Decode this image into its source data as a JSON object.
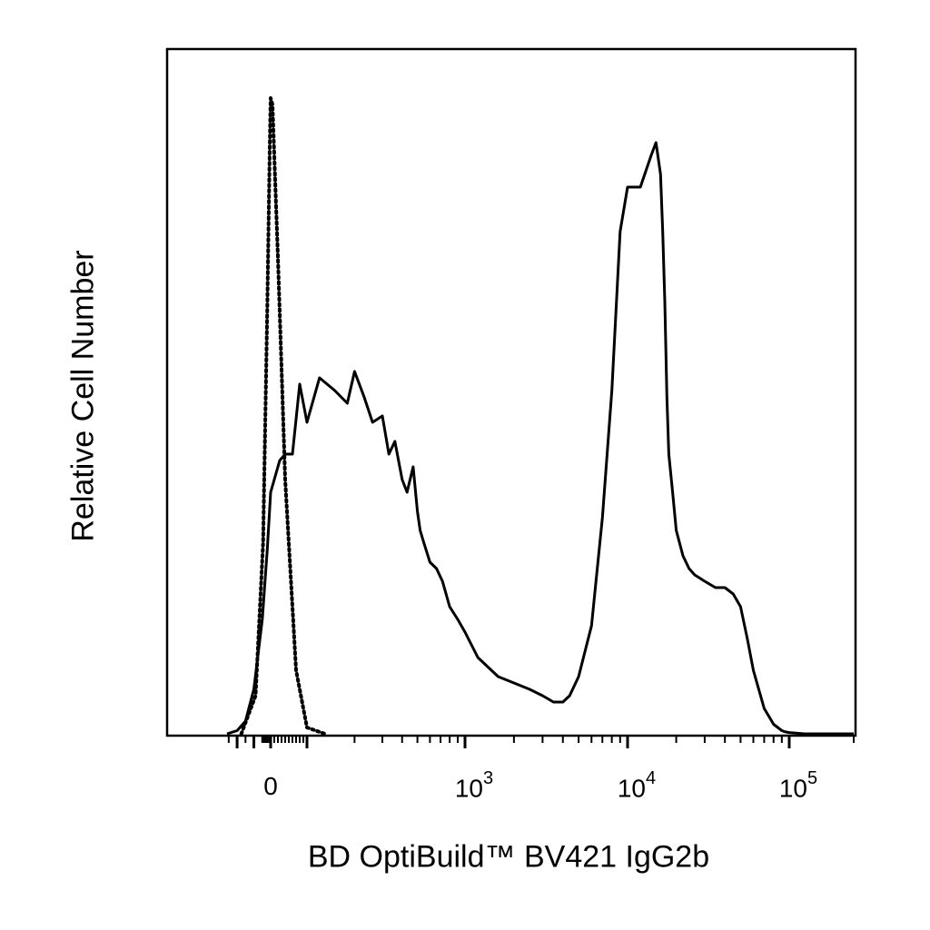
{
  "chart_data": {
    "type": "area",
    "xlabel": "BD OptiBuild™ BV421 IgG2b",
    "ylabel": "Relative Cell Number",
    "x_scale": "biexponential",
    "xlim": [
      -250,
      150000
    ],
    "ylim": [
      0,
      100
    ],
    "grid": false,
    "legend": "none",
    "tick_labels": [
      {
        "base": "0",
        "exp": "",
        "value": 0
      },
      {
        "base": "10",
        "exp": "3",
        "value": 1000
      },
      {
        "base": "10",
        "exp": "4",
        "value": 10000
      },
      {
        "base": "10",
        "exp": "5",
        "value": 100000
      }
    ],
    "series": [
      {
        "style": "dotted",
        "x": [
          -175,
          -90,
          -45,
          -20,
          -5,
          0,
          5,
          20,
          40,
          70,
          100,
          130
        ],
        "y": [
          0,
          6,
          30,
          67,
          93,
          100,
          99,
          75,
          40,
          10,
          1,
          0
        ]
      },
      {
        "style": "solid",
        "x": [
          -260,
          -200,
          -150,
          -100,
          -50,
          -20,
          0,
          10,
          25,
          40,
          60,
          80,
          100,
          120,
          150,
          180,
          200,
          230,
          260,
          300,
          330,
          360,
          400,
          430,
          470,
          500,
          520,
          550,
          600,
          660,
          720,
          800,
          900,
          1000,
          1200,
          1600,
          2000,
          2500,
          3000,
          3500,
          4000,
          4400,
          5000,
          6000,
          7000,
          8000,
          9000,
          10000,
          12000,
          14000,
          15000,
          16000,
          16500,
          17000,
          17500,
          18000,
          19000,
          20000,
          22000,
          24000,
          26000,
          30000,
          35000,
          40000,
          45000,
          50000,
          55000,
          60000,
          70000,
          80000,
          90000,
          95000,
          100000,
          110000,
          120000,
          130000,
          140000,
          150000
        ],
        "y": [
          0,
          0.5,
          2,
          7,
          18,
          29,
          38,
          40,
          43,
          44,
          44,
          55,
          49,
          56,
          54,
          52,
          57,
          53,
          49,
          50,
          44,
          46,
          40,
          38,
          42,
          35,
          32,
          30,
          27,
          26,
          24,
          20,
          18,
          16,
          12,
          9,
          8,
          7,
          6,
          5,
          5,
          6,
          9,
          17,
          34,
          54,
          79,
          86,
          86,
          91,
          93,
          88,
          79,
          68,
          53,
          44,
          38,
          32,
          28,
          26,
          25,
          24,
          23,
          23,
          22,
          20,
          15,
          10,
          4,
          1.5,
          0.5,
          0.3,
          0.2,
          0,
          0,
          0,
          0,
          0
        ]
      }
    ]
  }
}
